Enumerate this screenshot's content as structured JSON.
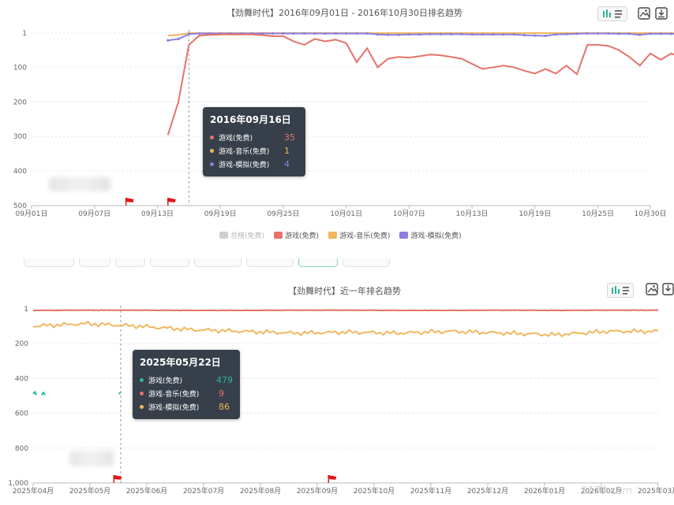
{
  "colors": {
    "total": "#cfcfcf",
    "game": "#e5736a",
    "music": "#f0b75e",
    "sim": "#8a7fe0",
    "green": "#2db59a",
    "flag": "#e0181a"
  },
  "toolbar": {
    "icons": [
      "bar-chart-toggle-icon",
      "image-save-icon",
      "download-icon"
    ]
  },
  "chart1": {
    "title": "【劲舞时代】2016年09月01日 - 2016年10月30日排名趋势",
    "legend": [
      {
        "name": "总榜(免费)",
        "color": "#cfcfcf",
        "muted": true
      },
      {
        "name": "游戏(免费)",
        "color": "#e5736a"
      },
      {
        "name": "游戏-音乐(免费)",
        "color": "#f0b75e"
      },
      {
        "name": "游戏-模拟(免费)",
        "color": "#8a7fe0"
      }
    ],
    "tooltip": {
      "date": "2016年09月16日",
      "rows": [
        {
          "label": "游戏(免费)",
          "value": "35",
          "color": "#e5736a"
        },
        {
          "label": "游戏-音乐(免费)",
          "value": "1",
          "color": "#f0b75e"
        },
        {
          "label": "游戏-模拟(免费)",
          "value": "4",
          "color": "#8a7fe0"
        }
      ]
    }
  },
  "chart2": {
    "title": "【劲舞时代】近一年排名趋势",
    "tooltip": {
      "date": "2025年05月22日",
      "rows": [
        {
          "label": "游戏(免费)",
          "value": "479",
          "color": "#2db59a"
        },
        {
          "label": "游戏-音乐(免费)",
          "value": "9",
          "color": "#e5736a"
        },
        {
          "label": "游戏-模拟(免费)",
          "value": "86",
          "color": "#f0b75e"
        }
      ]
    }
  },
  "watermark": "1173.com",
  "chart_data": [
    {
      "type": "line",
      "title": "【劲舞时代】2016年09月01日 - 2016年10月30日排名趋势",
      "xlabel": "",
      "ylabel": "",
      "ylim": [
        1,
        500
      ],
      "y_inverted": true,
      "y_ticks": [
        "1",
        "100",
        "200",
        "300",
        "400",
        "500"
      ],
      "x_ticks": [
        "09月01日",
        "09月07日",
        "09月13日",
        "09月19日",
        "09月25日",
        "10月01日",
        "10月07日",
        "10月13日",
        "10月19日",
        "10月25日",
        "10月30日"
      ],
      "x_start": "2016-09-01",
      "x_end": "2016-10-30",
      "grid": true,
      "legend_position": "bottom",
      "series": [
        {
          "name": "游戏(免费)",
          "color": "#e5736a",
          "start": "2016-09-14",
          "values": [
            296,
            200,
            35,
            8,
            6,
            5,
            5,
            5,
            5,
            7,
            10,
            10,
            25,
            35,
            18,
            25,
            20,
            30,
            85,
            45,
            100,
            75,
            70,
            72,
            68,
            63,
            65,
            70,
            75,
            90,
            105,
            100,
            95,
            100,
            110,
            118,
            105,
            118,
            95,
            120,
            35,
            35,
            38,
            50,
            70,
            95,
            60,
            78,
            60,
            72,
            90,
            75,
            108
          ]
        },
        {
          "name": "游戏-音乐(免费)",
          "color": "#f0b75e",
          "start": "2016-09-14",
          "values": [
            8,
            6,
            1,
            1,
            1,
            1,
            1,
            1,
            1,
            1,
            1,
            1,
            1,
            1,
            1,
            1,
            1,
            1,
            1,
            1,
            1,
            1,
            1,
            1,
            1,
            1,
            1,
            1,
            1,
            1,
            1,
            1,
            1,
            1,
            1,
            1,
            1,
            1,
            1,
            1,
            1,
            1,
            1,
            1,
            1,
            1,
            1,
            1,
            1,
            1,
            1,
            1,
            1
          ]
        },
        {
          "name": "游戏-模拟(免费)",
          "color": "#8a7fe0",
          "start": "2016-09-14",
          "values": [
            22,
            18,
            4,
            2,
            2,
            2,
            2,
            2,
            2,
            2,
            2,
            2,
            2,
            2,
            2,
            2,
            2,
            2,
            2,
            2,
            5,
            6,
            6,
            5,
            5,
            4,
            4,
            4,
            4,
            5,
            5,
            5,
            5,
            5,
            7,
            8,
            9,
            5,
            4,
            3,
            2,
            2,
            2,
            3,
            3,
            6,
            3,
            3,
            3,
            4,
            4,
            4,
            5
          ]
        }
      ],
      "flags": [
        "2016-09-10",
        "2016-09-14"
      ],
      "highlight": "2016-09-16"
    },
    {
      "type": "line",
      "title": "【劲舞时代】近一年排名趋势",
      "xlabel": "",
      "ylabel": "",
      "ylim": [
        1,
        1000
      ],
      "y_inverted": true,
      "y_ticks": [
        "1",
        "200",
        "400",
        "600",
        "800",
        "1,000"
      ],
      "x_ticks": [
        "2025年04月",
        "2025年05月",
        "2025年06月",
        "2025年07月",
        "2025年08月",
        "2025年09月",
        "2025年10月",
        "2025年11月",
        "2025年12月",
        "2026年01月",
        "2026年02月",
        "2025年03月"
      ],
      "x_start": "2025-04-01",
      "x_end": "2026-03-31",
      "grid": true,
      "series": [
        {
          "name": "游戏(免费)",
          "color": "#2db59a",
          "points": [
            [
              "2025-04-01",
              490
            ],
            [
              "2025-04-02",
              478
            ],
            [
              "2025-04-03",
              495
            ],
            [
              "2025-04-06",
              495
            ],
            [
              "2025-04-07",
              482
            ],
            [
              "2025-04-08",
              495
            ],
            [
              "2025-05-21",
              490
            ],
            [
              "2025-05-22",
              479
            ]
          ]
        },
        {
          "name": "游戏-音乐(免费)",
          "color": "#e5736a",
          "values_monthly": [
            10,
            9,
            9,
            10,
            10,
            9,
            9,
            10,
            10,
            9,
            10,
            9
          ]
        },
        {
          "name": "游戏-模拟(免费)",
          "color": "#f0b75e",
          "values_monthly": [
            100,
            86,
            100,
            120,
            130,
            140,
            135,
            140,
            130,
            140,
            150,
            130
          ]
        }
      ],
      "flags": [
        "2025-05-18",
        "2025-09-20"
      ],
      "highlight": "2025-05-22"
    }
  ]
}
